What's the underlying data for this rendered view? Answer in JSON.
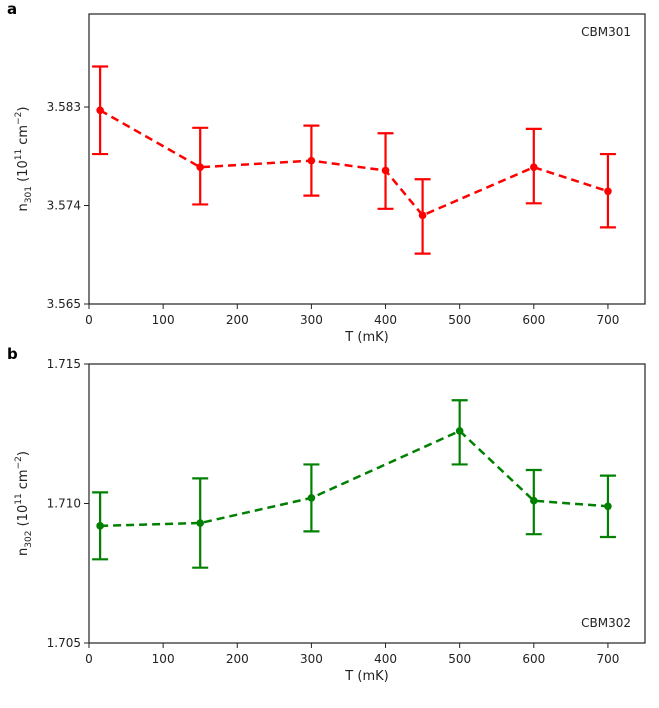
{
  "chart_data": [
    {
      "type": "line",
      "panel": "a",
      "annotation": "CBM301",
      "xlabel": "T (mK)",
      "ylabel_main": "n",
      "ylabel_sub": "301",
      "ylabel_rest": " (10",
      "ylabel_sup": "11",
      "ylabel_unit": " cm",
      "ylabel_unit_sup": "−2",
      "ylabel_close": ")",
      "xlim": [
        0,
        750
      ],
      "ylim": [
        3.565,
        3.5915
      ],
      "xticks": [
        0,
        100,
        200,
        300,
        400,
        500,
        600,
        700
      ],
      "xtick_labels": [
        "0",
        "100",
        "200",
        "300",
        "400",
        "500",
        "600",
        "700"
      ],
      "yticks": [
        3.565,
        3.574,
        3.583
      ],
      "ytick_labels": [
        "3.565",
        "3.574",
        "3.583"
      ],
      "color": "#ff0000",
      "line_style": "dashed",
      "series": [
        {
          "name": "CBM301",
          "x": [
            15,
            150,
            300,
            400,
            450,
            600,
            700
          ],
          "y": [
            3.5827,
            3.5775,
            3.5781,
            3.5772,
            3.5731,
            3.5775,
            3.5753
          ],
          "err": [
            3.5787,
            3.5741,
            3.5749,
            3.5737,
            3.5696,
            3.5742,
            3.572
          ],
          "err_hi": [
            3.5867,
            3.5811,
            3.5813,
            3.5806,
            3.5764,
            3.581,
            3.5787
          ]
        }
      ]
    },
    {
      "type": "line",
      "panel": "b",
      "annotation": "CBM302",
      "xlabel": "T (mK)",
      "ylabel_main": "n",
      "ylabel_sub": "302",
      "ylabel_rest": " (10",
      "ylabel_sup": "11",
      "ylabel_unit": " cm",
      "ylabel_unit_sup": "−2",
      "ylabel_close": ")",
      "xlim": [
        0,
        750
      ],
      "ylim": [
        1.705,
        1.715
      ],
      "xticks": [
        0,
        100,
        200,
        300,
        400,
        500,
        600,
        700
      ],
      "xtick_labels": [
        "0",
        "100",
        "200",
        "300",
        "400",
        "500",
        "600",
        "700"
      ],
      "yticks": [
        1.705,
        1.71,
        1.715
      ],
      "ytick_labels": [
        "1.705",
        "1.710",
        "1.715"
      ],
      "color": "#008000",
      "line_style": "dashed",
      "series": [
        {
          "name": "CBM302",
          "x": [
            15,
            150,
            300,
            500,
            600,
            700
          ],
          "y": [
            1.7092,
            1.7093,
            1.7102,
            1.7126,
            1.7101,
            1.7099
          ],
          "err": [
            1.708,
            1.7077,
            1.709,
            1.7114,
            1.7089,
            1.7088
          ],
          "err_hi": [
            1.7104,
            1.7109,
            1.7114,
            1.7137,
            1.7112,
            1.711
          ]
        }
      ]
    }
  ]
}
